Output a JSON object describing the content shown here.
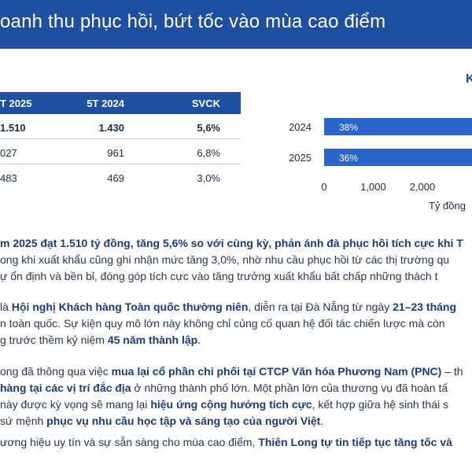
{
  "banner": {
    "title": "oanh thu phục hồi, bứt tốc vào mùa cao điểm"
  },
  "table": {
    "headers": [
      "T 2025",
      "5T 2024",
      "SVCK"
    ],
    "rows": [
      [
        "1.510",
        "1.430",
        "5,6%"
      ],
      [
        "027",
        "961",
        "6,8%"
      ],
      [
        "483",
        "469",
        "3,0%"
      ]
    ]
  },
  "chart_data": {
    "type": "bar",
    "orientation": "horizontal",
    "title_fragment": "K",
    "categories": [
      "2024",
      "2025"
    ],
    "bar_labels": [
      "38%",
      "36%"
    ],
    "x_ticks": [
      "0",
      "1,000",
      "2,000",
      "3,0"
    ],
    "xlabel": "Tỷ đồng",
    "xlim": [
      0,
      3000
    ],
    "colors": {
      "bar": "#2a66c9",
      "label": "#ffffff",
      "axis_text": "#1f2a44"
    }
  },
  "paragraphs": {
    "p1": [
      [
        {
          "t": "m 2025 đạt 1.510 tỷ đồng, tăng 5,6% so với cùng kỳ, phản ánh đà phục hồi tích cực khi T",
          "b": true
        }
      ],
      [
        {
          "t": "ong khi xuất khẩu cũng ghi nhận mức tăng 3,0%, nhờ nhu cầu phục hồi từ các thị trường qu",
          "b": false
        }
      ],
      [
        {
          "t": "ự ổn định và bền bỉ, đóng góp tích cực vào tăng trưởng xuất khẩu bất chấp những thách t",
          "b": false
        }
      ]
    ],
    "p2": [
      [
        {
          "t": "là ",
          "b": false
        },
        {
          "t": "Hội nghị Khách hàng Toàn quốc thường niên",
          "b": true
        },
        {
          "t": ", diễn ra tại Đà Nẵng từ ngày ",
          "b": false
        },
        {
          "t": "21–23 tháng",
          "b": true
        }
      ],
      [
        {
          "t": "n toàn quốc. Sự kiện quy mô lớn này không chỉ củng cố quan hệ đối tác chiến lược mà còn",
          "b": false
        }
      ],
      [
        {
          "t": "g trước thềm kỷ niệm ",
          "b": false
        },
        {
          "t": "45 năm thành lập",
          "b": true
        },
        {
          "t": ".",
          "b": false
        }
      ]
    ],
    "p3": [
      [
        {
          "t": "ong đã thông qua việc ",
          "b": false
        },
        {
          "t": "mua lại cổ phần chi phối tại CTCP Văn hóa Phương Nam (PNC)",
          "b": true
        },
        {
          "t": " – th",
          "b": false
        }
      ],
      [
        {
          "t": "hàng tại các vị trí đắc địa",
          "b": true
        },
        {
          "t": " ở những thành phố lớn. Một phần lớn của thương vụ đã hoàn tấ",
          "b": false
        }
      ],
      [
        {
          "t": "này được kỳ vọng sẽ mang lại ",
          "b": false
        },
        {
          "t": "hiệu ứng cộng hưởng tích cực",
          "b": true
        },
        {
          "t": ", kết hợp giữa hệ sinh thái s",
          "b": false
        }
      ],
      [
        {
          "t": "sứ mệnh ",
          "b": false
        },
        {
          "t": "phục vụ nhu cầu học tập và sáng tạo của người Việt",
          "b": true
        },
        {
          "t": ".",
          "b": false
        }
      ]
    ],
    "p4": [
      [
        {
          "t": "ương hiệu uy tín và sự sẵn sàng cho mùa cao điểm, ",
          "b": false
        },
        {
          "t": "Thiên Long tự tin tiếp tục tăng tốc và",
          "b": true
        }
      ]
    ]
  }
}
